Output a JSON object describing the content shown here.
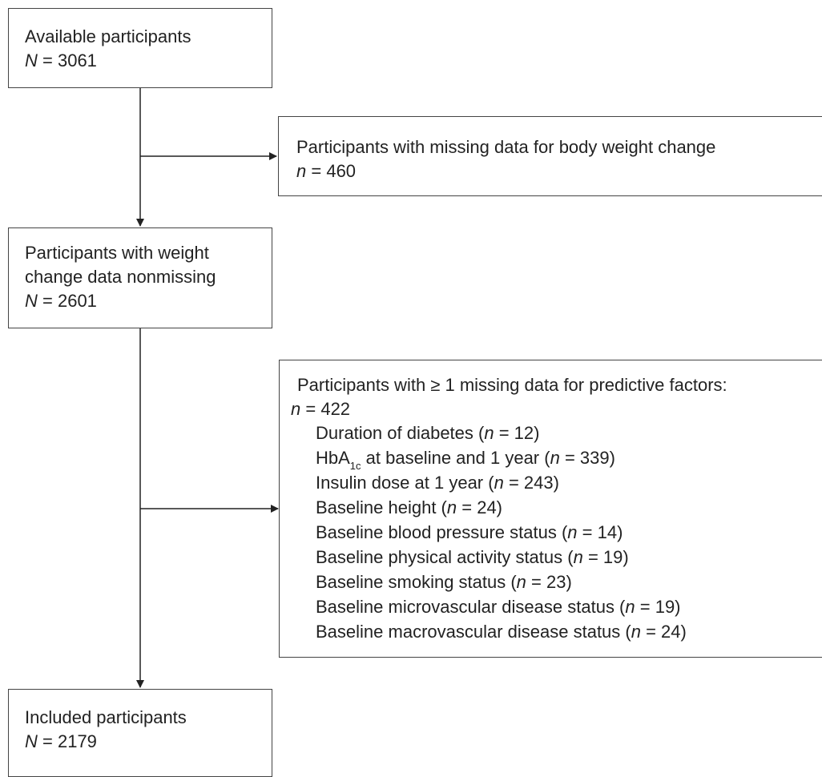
{
  "flowchart": {
    "available": {
      "label": "Available participants",
      "n_symbol": "N",
      "n_value": "= 3061"
    },
    "excluded_weight": {
      "label": "Participants with missing data for body weight change",
      "n_symbol": "n",
      "n_value": "= 460"
    },
    "nonmissing": {
      "line1": "Participants with weight",
      "line2": "change data nonmissing",
      "n_symbol": "N",
      "n_value": "= 2601"
    },
    "excluded_factors": {
      "label": "Participants with ≥ 1 missing data for predictive factors:",
      "n_symbol": "n",
      "n_value": "= 422",
      "items": [
        {
          "pre": "Duration of diabetes (",
          "n": "n",
          "post": " = 12)"
        },
        {
          "pre": "HbA",
          "sub": "1c",
          "mid": " at baseline and 1 year (",
          "n": "n",
          "post": " = 339)"
        },
        {
          "pre": "Insulin dose at 1 year (",
          "n": "n",
          "post": " = 243)"
        },
        {
          "pre": "Baseline height (",
          "n": "n",
          "post": " = 24)"
        },
        {
          "pre": "Baseline blood pressure status (",
          "n": "n",
          "post": " = 14)"
        },
        {
          "pre": "Baseline physical activity status (",
          "n": "n",
          "post": " = 19)"
        },
        {
          "pre": "Baseline smoking status (",
          "n": "n",
          "post": " = 23)"
        },
        {
          "pre": "Baseline microvascular disease status (",
          "n": "n",
          "post": " = 19)"
        },
        {
          "pre": "Baseline macrovascular disease status (",
          "n": "n",
          "post": " = 24)"
        }
      ]
    },
    "included": {
      "label": "Included participants",
      "n_symbol": "N",
      "n_value": "= 2179"
    }
  },
  "colors": {
    "border": "#444444",
    "text": "#222222",
    "arrow": "#222222",
    "background": "#ffffff"
  }
}
